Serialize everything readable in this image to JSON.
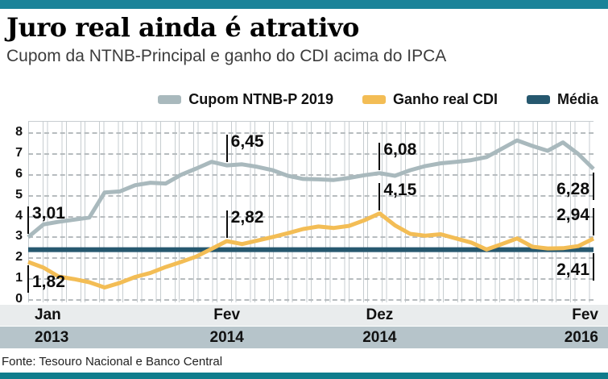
{
  "page": {
    "title": "Juro real ainda é atrativo",
    "subtitle": "Cupom da NTNB-Principal e ganho do CDI acima do IPCA",
    "source": "Fonte: Tesouro Nacional e Banco Central"
  },
  "colors": {
    "top_bar": "#1b8399",
    "bottom_bar": "#0f7c8c",
    "ntnb_line": "#a9b9bd",
    "cdi_line": "#f3bd55",
    "media_line": "#26586f",
    "month_band_bg": "#e9eced",
    "year_band_bg": "#b6c4ca",
    "grid": "#c7cdd0",
    "dash": "#b7bcbf",
    "annotation": "#0d0d0d"
  },
  "legend": {
    "items": [
      {
        "label": "Cupom NTNB-P 2019",
        "color": "#a9b9bd"
      },
      {
        "label": "Ganho real CDI",
        "color": "#f3bd55"
      },
      {
        "label": "Média",
        "color": "#26586f"
      }
    ]
  },
  "chart_data": {
    "type": "line",
    "title": "Juro real ainda é atrativo",
    "subtitle": "Cupom da NTNB-Principal e ganho do CDI acima do IPCA",
    "x_unit": "monthly, Jan 2013 to Fev 2016 (38 points)",
    "ylim": [
      0,
      8
    ],
    "yticks": [
      0,
      1,
      2,
      3,
      4,
      5,
      6,
      7,
      8
    ],
    "grid": "vertical stripes + horizontal dashed lines",
    "legend_position": "top-right",
    "xticks": [
      {
        "month": "Jan",
        "year": "2013",
        "index": 0
      },
      {
        "month": "Fev",
        "year": "2014",
        "index": 13
      },
      {
        "month": "Dez",
        "year": "2014",
        "index": 23
      },
      {
        "month": "Fev",
        "year": "2016",
        "index": 37
      }
    ],
    "series": [
      {
        "name": "Cupom NTNB-P 2019",
        "color": "#a9b9bd",
        "values": [
          3.01,
          3.62,
          3.75,
          3.85,
          3.95,
          5.15,
          5.2,
          5.5,
          5.62,
          5.58,
          6.0,
          6.3,
          6.62,
          6.45,
          6.5,
          6.38,
          6.22,
          5.95,
          5.8,
          5.78,
          5.75,
          5.85,
          5.98,
          6.08,
          5.95,
          6.22,
          6.42,
          6.55,
          6.62,
          6.7,
          6.85,
          7.25,
          7.65,
          7.38,
          7.15,
          7.55,
          7.0,
          6.28
        ]
      },
      {
        "name": "Ganho real CDI",
        "color": "#f3bd55",
        "values": [
          1.82,
          1.55,
          1.12,
          1.0,
          0.85,
          0.6,
          0.82,
          1.1,
          1.3,
          1.58,
          1.82,
          2.08,
          2.45,
          2.82,
          2.68,
          2.85,
          3.02,
          3.2,
          3.4,
          3.52,
          3.45,
          3.55,
          3.82,
          4.15,
          3.58,
          3.17,
          3.08,
          3.15,
          2.95,
          2.75,
          2.42,
          2.68,
          2.95,
          2.55,
          2.47,
          2.48,
          2.58,
          2.94
        ]
      },
      {
        "name": "Média",
        "color": "#26586f",
        "constant": 2.41
      }
    ],
    "annotations": [
      {
        "label": "3,01",
        "value": 3.01,
        "index": 0,
        "series": "Cupom NTNB-P 2019",
        "dir": "up",
        "side": "right"
      },
      {
        "label": "1,82",
        "value": 1.82,
        "index": 0,
        "series": "Ganho real CDI",
        "dir": "down",
        "side": "right"
      },
      {
        "label": "6,45",
        "value": 6.45,
        "index": 13,
        "series": "Cupom NTNB-P 2019",
        "dir": "up",
        "side": "right"
      },
      {
        "label": "2,82",
        "value": 2.82,
        "index": 13,
        "series": "Ganho real CDI",
        "dir": "up",
        "side": "right"
      },
      {
        "label": "6,08",
        "value": 6.08,
        "index": 23,
        "series": "Cupom NTNB-P 2019",
        "dir": "up",
        "side": "right"
      },
      {
        "label": "4,15",
        "value": 4.15,
        "index": 23,
        "series": "Ganho real CDI",
        "dir": "up",
        "side": "right"
      },
      {
        "label": "6,28",
        "value": 6.28,
        "index": 37,
        "series": "Cupom NTNB-P 2019",
        "dir": "down",
        "side": "left"
      },
      {
        "label": "2,94",
        "value": 2.94,
        "index": 37,
        "series": "Ganho real CDI",
        "dir": "up",
        "side": "left"
      },
      {
        "label": "2,41",
        "value": 2.41,
        "index": 37,
        "series": "Média",
        "dir": "down",
        "side": "left"
      }
    ]
  }
}
